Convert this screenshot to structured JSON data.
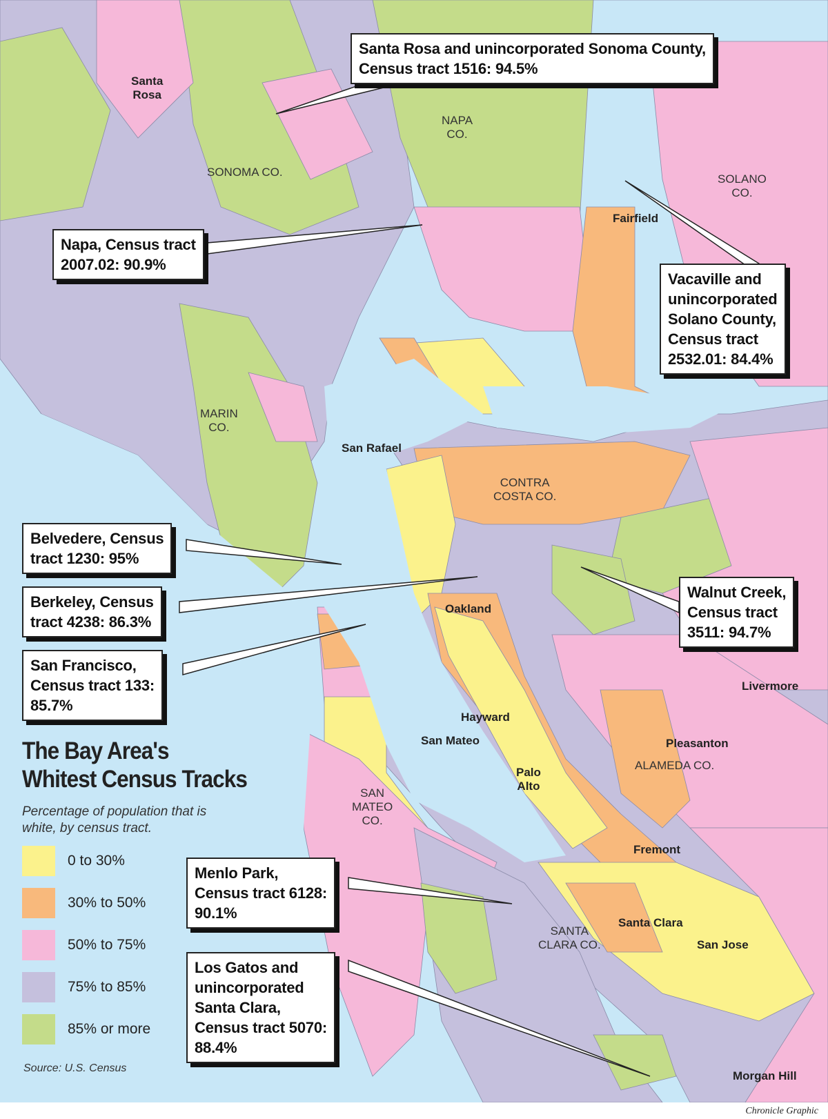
{
  "title_lines": [
    "The Bay Area's",
    "Whitest Census Tracks"
  ],
  "subtitle": "Percentage of population that is white, by census tract.",
  "legend": [
    {
      "label": "0 to 30%",
      "color": "#fbf28c"
    },
    {
      "label": "30% to 50%",
      "color": "#f8b97c"
    },
    {
      "label": "50% to 75%",
      "color": "#f6b8d9"
    },
    {
      "label": "75% to 85%",
      "color": "#c5c0dd"
    },
    {
      "label": "85% or more",
      "color": "#c4dc8a"
    }
  ],
  "water_color": "#c8e7f7",
  "source": "Source: U.S. Census",
  "credit": "Chronicle Graphic",
  "counties": [
    {
      "name": "SONOMA CO."
    },
    {
      "name": "NAPA\nCO."
    },
    {
      "name": "SOLANO\nCO."
    },
    {
      "name": "MARIN\nCO."
    },
    {
      "name": "CONTRA\nCOSTA CO."
    },
    {
      "name": "ALAMEDA CO."
    },
    {
      "name": "SAN\nMATEO\nCO."
    },
    {
      "name": "SANTA\nCLARA CO."
    }
  ],
  "cities": [
    "Santa\nRosa",
    "Fairfield",
    "San Rafael",
    "Oakland",
    "Livermore",
    "Hayward",
    "San Mateo",
    "Pleasanton",
    "Palo\nAlto",
    "Fremont",
    "Santa Clara",
    "San Jose",
    "Morgan Hill"
  ],
  "callouts": [
    {
      "lines": [
        "Santa Rosa and unincorporated Sonoma County,",
        "Census tract 1516: 94.5%"
      ]
    },
    {
      "lines": [
        "Napa, Census tract",
        "2007.02: 90.9%"
      ]
    },
    {
      "lines": [
        "Vacaville and",
        "unincorporated",
        "Solano County,",
        "Census tract",
        "2532.01: 84.4%"
      ]
    },
    {
      "lines": [
        "Belvedere, Census",
        "tract 1230: 95%"
      ]
    },
    {
      "lines": [
        "Berkeley, Census",
        "tract 4238: 86.3%"
      ]
    },
    {
      "lines": [
        "San Francisco,",
        "Census tract 133:",
        "85.7%"
      ]
    },
    {
      "lines": [
        "Walnut Creek,",
        "Census tract",
        "3511: 94.7%"
      ]
    },
    {
      "lines": [
        "Menlo Park,",
        "Census tract 6128:",
        "90.1%"
      ]
    },
    {
      "lines": [
        "Los Gatos and",
        "unincorporated",
        "Santa Clara,",
        "Census tract 5070:",
        "88.4%"
      ]
    }
  ]
}
